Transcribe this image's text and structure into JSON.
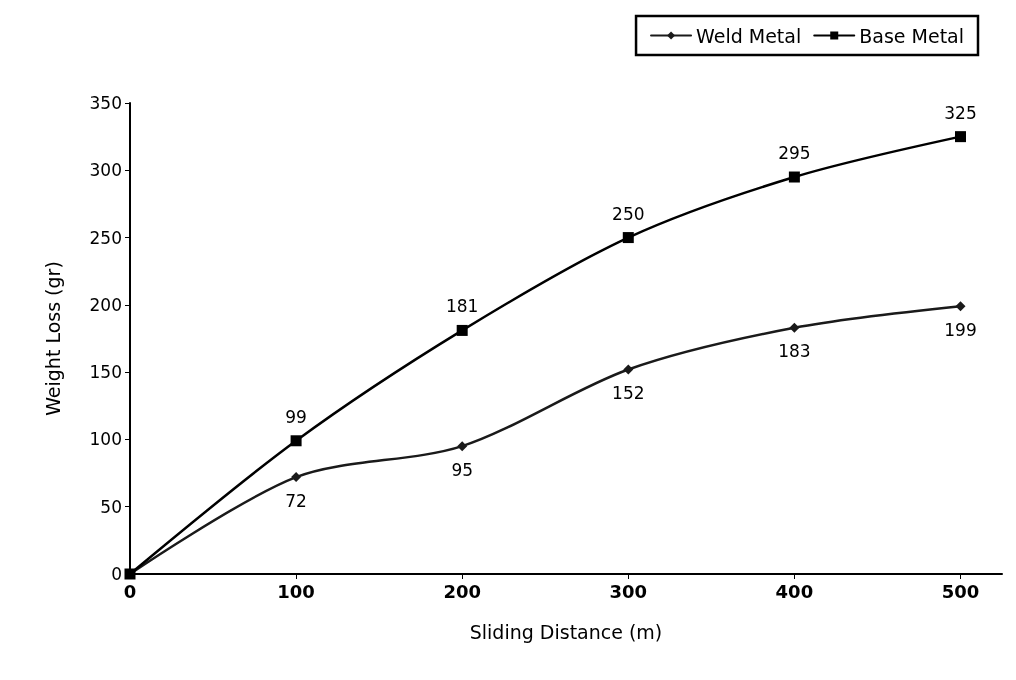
{
  "chart_data": {
    "type": "line",
    "xlabel": "Sliding Distance (m)",
    "ylabel": "Weight Loss (gr)",
    "x": [
      0,
      100,
      200,
      300,
      400,
      500
    ],
    "series": [
      {
        "name": "Weld Metal",
        "color": "#1a1a1a",
        "marker": "diamond",
        "values": [
          0,
          72,
          95,
          152,
          183,
          199
        ],
        "value_labels": [
          null,
          "72",
          "95",
          "152",
          "183",
          "199"
        ]
      },
      {
        "name": "Base Metal",
        "color": "#000000",
        "marker": "square",
        "values": [
          0,
          99,
          181,
          250,
          295,
          325
        ],
        "value_labels": [
          null,
          "99",
          "181",
          "250",
          "295",
          "325"
        ]
      }
    ],
    "xlim": [
      0,
      525
    ],
    "xticks": [
      0,
      100,
      200,
      300,
      400,
      500
    ],
    "ylim": [
      0,
      350
    ],
    "yticks": [
      0,
      50,
      100,
      150,
      200,
      250,
      300,
      350
    ],
    "grid": false,
    "legend": "top right",
    "line_style": "solid"
  }
}
